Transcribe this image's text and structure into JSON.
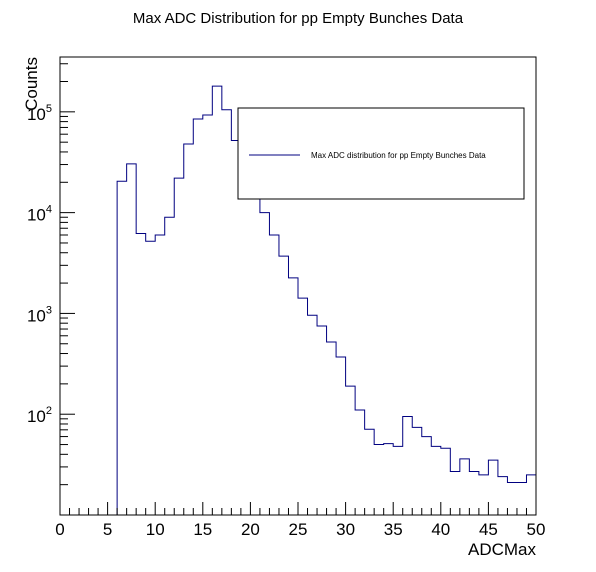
{
  "chart_data": {
    "type": "histogram",
    "title": "Max ADC Distribution for pp Empty Bunches Data",
    "xlabel": "ADCMax",
    "ylabel": "Counts",
    "xlim": [
      0,
      50
    ],
    "ylim": [
      10,
      350000
    ],
    "yscale": "log",
    "grid": false,
    "legend_position": "top-right",
    "bin_width": 1,
    "series": [
      {
        "name": "Max ADC distribution for pp Empty Bunches Data",
        "color": "#000080",
        "bin_edges": [
          0,
          1,
          2,
          3,
          4,
          5,
          6,
          7,
          8,
          9,
          10,
          11,
          12,
          13,
          14,
          15,
          16,
          17,
          18,
          19,
          20,
          21,
          22,
          23,
          24,
          25,
          26,
          27,
          28,
          29,
          30,
          31,
          32,
          33,
          34,
          35,
          36,
          37,
          38,
          39,
          40,
          41,
          42,
          43,
          44,
          45,
          46,
          47,
          48,
          49,
          50
        ],
        "values": [
          0,
          0,
          0,
          0,
          0,
          0,
          20500,
          30500,
          6200,
          5200,
          6000,
          9000,
          22000,
          48000,
          85000,
          93000,
          180000,
          105000,
          52000,
          30000,
          17000,
          10000,
          6000,
          3700,
          2250,
          1420,
          960,
          750,
          520,
          370,
          190,
          110,
          71,
          50,
          51,
          48,
          95,
          74,
          60,
          48,
          46,
          27,
          36,
          27,
          25,
          35,
          24,
          21,
          21,
          25
        ]
      }
    ],
    "x_ticks": [
      "0",
      "5",
      "10",
      "15",
      "20",
      "25",
      "30",
      "35",
      "40",
      "45",
      "50"
    ],
    "y_ticks": [
      {
        "value": 100,
        "base": "10",
        "exp": "2"
      },
      {
        "value": 1000,
        "base": "10",
        "exp": "3"
      },
      {
        "value": 10000,
        "base": "10",
        "exp": "4"
      },
      {
        "value": 100000,
        "base": "10",
        "exp": "5"
      }
    ]
  }
}
